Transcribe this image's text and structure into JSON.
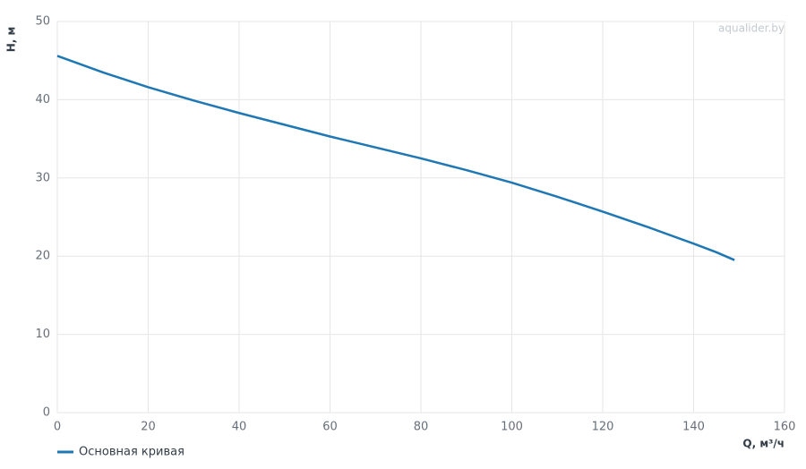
{
  "chart_data": {
    "type": "line",
    "watermark": "aqualider.by",
    "x_label": "Q, м³/ч",
    "y_label": "H, м",
    "x": [
      0,
      10,
      20,
      30,
      40,
      50,
      60,
      70,
      80,
      90,
      100,
      110,
      120,
      130,
      140,
      145,
      149
    ],
    "series": [
      {
        "name": "Основная кривая",
        "color": "#1f77b4",
        "values": [
          45.6,
          43.5,
          41.6,
          39.9,
          38.3,
          36.8,
          35.3,
          33.9,
          32.5,
          31.0,
          29.4,
          27.6,
          25.7,
          23.7,
          21.6,
          20.5,
          19.5
        ]
      }
    ],
    "xlim": [
      0,
      160
    ],
    "xticks": [
      0,
      20,
      40,
      60,
      80,
      100,
      120,
      140,
      160
    ],
    "ylim": [
      0,
      50
    ],
    "yticks": [
      0,
      10,
      20,
      30,
      40,
      50
    ],
    "grid": true
  }
}
